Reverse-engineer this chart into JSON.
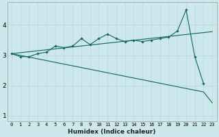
{
  "xlabel": "Humidex (Indice chaleur)",
  "bg_color": "#cce8ec",
  "line_color": "#1a6b5a",
  "x": [
    0,
    1,
    2,
    3,
    4,
    5,
    6,
    7,
    8,
    9,
    10,
    11,
    12,
    13,
    14,
    15,
    16,
    17,
    18,
    19,
    20,
    21,
    22,
    23
  ],
  "line1_y": [
    3.05,
    2.95,
    2.95,
    3.05,
    3.1,
    3.3,
    3.25,
    3.3,
    3.55,
    3.35,
    3.55,
    3.7,
    3.55,
    3.45,
    3.5,
    3.45,
    3.5,
    3.55,
    3.6,
    3.8,
    4.5,
    2.95,
    2.05,
    null
  ],
  "line2_y": [
    3.05,
    null,
    null,
    null,
    null,
    null,
    null,
    null,
    null,
    null,
    null,
    null,
    null,
    null,
    null,
    null,
    null,
    null,
    null,
    null,
    null,
    null,
    null,
    3.78
  ],
  "line3_y": [
    3.05,
    null,
    null,
    null,
    null,
    null,
    null,
    null,
    null,
    null,
    null,
    null,
    null,
    null,
    null,
    null,
    null,
    null,
    null,
    null,
    null,
    null,
    1.78,
    1.42
  ],
  "ylim": [
    0.8,
    4.75
  ],
  "xlim": [
    -0.5,
    23.5
  ],
  "yticks": [
    1,
    2,
    3,
    4
  ],
  "xticks": [
    0,
    1,
    2,
    3,
    4,
    5,
    6,
    7,
    8,
    9,
    10,
    11,
    12,
    13,
    14,
    15,
    16,
    17,
    18,
    19,
    20,
    21,
    22,
    23
  ],
  "grid_color": "#b8d8dc",
  "tick_fontsize": 5.0,
  "ytick_fontsize": 6.5,
  "xlabel_fontsize": 6.5,
  "lw": 0.85,
  "marker_size": 2.2
}
